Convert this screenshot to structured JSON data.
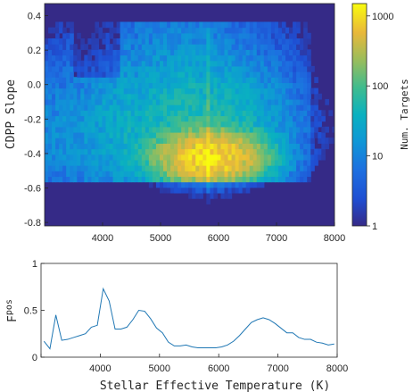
{
  "chart_data": [
    {
      "type": "heatmap",
      "xlabel": "",
      "ylabel": "CDPP Slope",
      "xlim": [
        3000,
        8000
      ],
      "ylim": [
        -0.82,
        0.47
      ],
      "xticks": [
        "4000",
        "5000",
        "6000",
        "7000",
        "8000"
      ],
      "yticks": [
        "0.4",
        "0.2",
        "0.0",
        "-0.2",
        "-0.4",
        "-0.6",
        "-0.8"
      ],
      "xtick_values": [
        4000,
        5000,
        6000,
        7000,
        8000
      ],
      "ytick_values": [
        0.4,
        0.2,
        0.0,
        -0.2,
        -0.4,
        -0.6,
        -0.8
      ],
      "colorscale": "parula",
      "log_scale_color": true,
      "colorbar": {
        "label": "Num. Targets",
        "range": [
          1,
          1500
        ],
        "ticks": [
          "1",
          "10",
          "100",
          "1000"
        ],
        "tick_values": [
          1,
          10,
          100,
          1000
        ]
      },
      "density_model": {
        "note_free": true,
        "peak_temperature": 5800,
        "peak_slope": -0.42,
        "peak_count": 1200
      }
    },
    {
      "type": "line",
      "xlabel": "Stellar Effective Temperature (K)",
      "ylabel_main": "F",
      "ylabel_sub": "pos",
      "xlim": [
        3000,
        8000
      ],
      "ylim": [
        0,
        1
      ],
      "xticks": [
        "3000",
        "4000",
        "5000",
        "6000",
        "7000",
        "8000"
      ],
      "xtick_values": [
        3000,
        4000,
        5000,
        6000,
        7000,
        8000
      ],
      "yticks": [
        "0",
        "0.5",
        "1"
      ],
      "ytick_values": [
        0,
        0.5,
        1
      ],
      "color": "#1f77b4",
      "x": [
        3050,
        3150,
        3250,
        3350,
        3450,
        3550,
        3650,
        3750,
        3850,
        3950,
        4050,
        4150,
        4250,
        4350,
        4450,
        4550,
        4650,
        4750,
        4850,
        4950,
        5050,
        5150,
        5250,
        5350,
        5450,
        5550,
        5650,
        5750,
        5850,
        5950,
        6050,
        6150,
        6250,
        6350,
        6450,
        6550,
        6650,
        6750,
        6850,
        6950,
        7050,
        7150,
        7250,
        7350,
        7450,
        7550,
        7650,
        7750,
        7850,
        7950
      ],
      "y": [
        0.17,
        0.09,
        0.45,
        0.18,
        0.19,
        0.21,
        0.23,
        0.25,
        0.32,
        0.34,
        0.73,
        0.6,
        0.3,
        0.3,
        0.32,
        0.4,
        0.5,
        0.49,
        0.41,
        0.31,
        0.26,
        0.16,
        0.12,
        0.12,
        0.13,
        0.11,
        0.1,
        0.1,
        0.1,
        0.1,
        0.11,
        0.13,
        0.17,
        0.23,
        0.3,
        0.37,
        0.4,
        0.42,
        0.4,
        0.36,
        0.31,
        0.26,
        0.26,
        0.21,
        0.19,
        0.19,
        0.16,
        0.15,
        0.13,
        0.14
      ]
    }
  ]
}
